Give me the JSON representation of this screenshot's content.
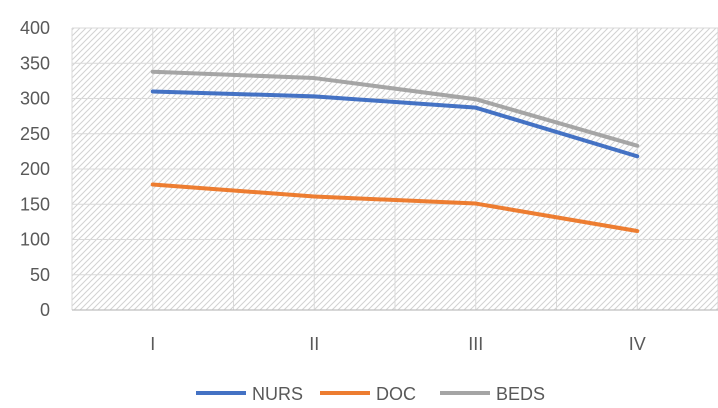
{
  "chart_data": {
    "type": "line",
    "categories": [
      "I",
      "II",
      "III",
      "IV"
    ],
    "series": [
      {
        "name": "NURS",
        "values": [
          310,
          303,
          287,
          218
        ],
        "color": "#4472C4"
      },
      {
        "name": "DOC",
        "values": [
          178,
          161,
          151,
          112
        ],
        "color": "#ED7D31"
      },
      {
        "name": "BEDS",
        "values": [
          338,
          329,
          299,
          233
        ],
        "color": "#A5A5A5"
      }
    ],
    "yticks": [
      "0",
      "50",
      "100",
      "150",
      "200",
      "250",
      "300",
      "350",
      "400"
    ],
    "ylim": [
      0,
      400
    ],
    "title": "",
    "xlabel": "",
    "ylabel": "",
    "grid": true,
    "plot_area_fill": "hatched",
    "legend_position": "bottom"
  }
}
